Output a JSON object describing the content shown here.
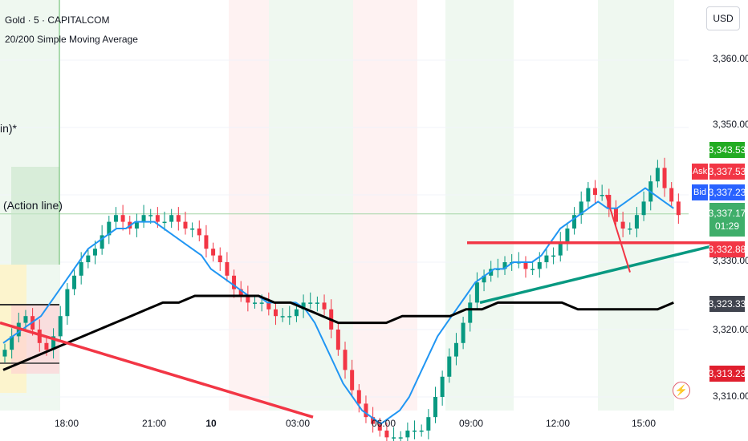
{
  "header": {
    "symbol_line": "Gold · 5 · CAPITALCOM",
    "indicator_line": "20/200 Simple Moving Average"
  },
  "currency_button": "USD",
  "price_axis": {
    "ticks": [
      "3,360.00",
      "3,350.00",
      "3,330.00",
      "3,320.00",
      "3,310.00"
    ],
    "tags": {
      "last_green": "3,343.53",
      "ask_label": "Ask",
      "ask": "3,337.53",
      "bid_label": "Bid",
      "bid": "3,337.23",
      "current": "3,337.17",
      "countdown": "01:29",
      "red_line": "3,332.88",
      "ma200": "3,323.33",
      "low": "3,313.23"
    }
  },
  "time_axis": [
    "18:00",
    "21:00",
    "10",
    "03:00",
    "06:00",
    "09:00",
    "12:00",
    "15:00"
  ],
  "drawings": {
    "partial_label": "in)*",
    "action_line_label": "(Action line)"
  },
  "colors": {
    "bull": "#089981",
    "bear": "#f23645",
    "ma20": "#2196f3",
    "ma200": "#000000",
    "trend_red": "#f23645",
    "trend_teal": "#089981",
    "session_green": "#e8f5e9",
    "session_red": "#fdecec"
  },
  "chart_data": {
    "type": "candlestick",
    "symbol": "Gold",
    "timeframe": "5",
    "price_range": [
      3306,
      3366
    ],
    "closes": [
      3317,
      3319,
      3321,
      3322,
      3320,
      3318,
      3317,
      3319,
      3322,
      3326,
      3328,
      3330,
      3331,
      3332,
      3334,
      3336,
      3337,
      3336,
      3335,
      3336,
      3337,
      3337,
      3336,
      3336,
      3337,
      3336,
      3335,
      3335,
      3334,
      3332,
      3331,
      3330,
      3328,
      3326,
      3325,
      3324,
      3324,
      3324,
      3323,
      3322,
      3322,
      3322,
      3323,
      3324,
      3324,
      3324,
      3323,
      3320,
      3317,
      3314,
      3311,
      3309,
      3307,
      3306,
      3305,
      3304,
      3304,
      3304,
      3305,
      3305,
      3305,
      3307,
      3310,
      3313,
      3316,
      3318,
      3321,
      3324,
      3327,
      3328,
      3329,
      3329,
      3330,
      3330,
      3330,
      3329,
      3329,
      3330,
      3331,
      3331,
      3333,
      3335,
      3337,
      3339,
      3341,
      3340,
      3340,
      3338,
      3336,
      3335,
      3335,
      3337,
      3339,
      3342,
      3344,
      3341,
      3339,
      3337
    ],
    "ma20": [
      3318,
      3319,
      3320,
      3321,
      3322,
      3324,
      3326,
      3328,
      3330,
      3332,
      3333,
      3334,
      3335,
      3335,
      3336,
      3336,
      3336,
      3335,
      3334,
      3333,
      3332,
      3331,
      3329,
      3328,
      3327,
      3326,
      3325,
      3325,
      3324,
      3324,
      3324,
      3324,
      3323,
      3321,
      3318,
      3315,
      3312,
      3310,
      3308,
      3307,
      3306,
      3307,
      3308,
      3310,
      3313,
      3316,
      3319,
      3321,
      3323,
      3325,
      3327,
      3328,
      3329,
      3329,
      3330,
      3330,
      3330,
      3331,
      3333,
      3335,
      3336,
      3337,
      3338,
      3339,
      3338,
      3338,
      3339,
      3340,
      3341,
      3340,
      3339,
      3338
    ],
    "ma200": [
      3314,
      3315,
      3316,
      3317,
      3318,
      3319,
      3320,
      3321,
      3322,
      3323,
      3324,
      3324,
      3325,
      3325,
      3325,
      3325,
      3325,
      3324,
      3324,
      3323,
      3322,
      3321,
      3321,
      3321,
      3321,
      3322,
      3322,
      3322,
      3322,
      3323,
      3323,
      3324,
      3324,
      3324,
      3324,
      3324,
      3323,
      3323,
      3323,
      3323,
      3323,
      3323,
      3324
    ],
    "trendlines": [
      {
        "name": "red descending",
        "from": [
          "left edge",
          3321
        ],
        "to": [
          "03:00",
          3307
        ]
      },
      {
        "name": "red horizontal",
        "price": 3332.88
      },
      {
        "name": "teal ascending",
        "from": [
          "09:00",
          3324
        ],
        "to": [
          "right edge",
          3332
        ]
      }
    ],
    "sessions": [
      "green",
      "red",
      "green",
      "red",
      "green",
      "green"
    ]
  }
}
